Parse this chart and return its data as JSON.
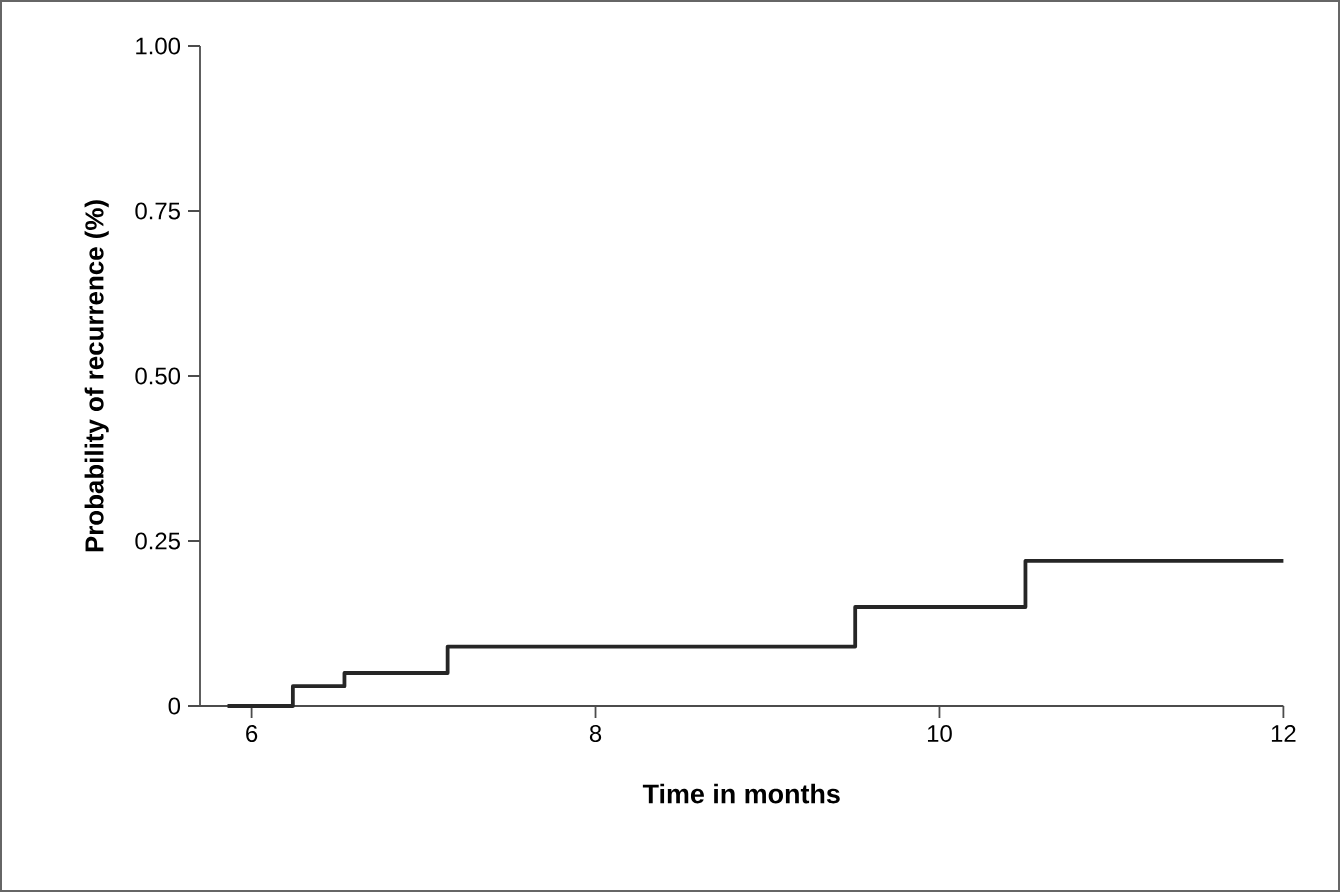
{
  "chart_data": {
    "type": "step",
    "xlabel": "Time in months",
    "ylabel": "Probability of recurrence (%)",
    "xlim": [
      5.7,
      12
    ],
    "xticks": [
      6,
      8,
      10,
      12
    ],
    "ylim": [
      0,
      1
    ],
    "yticks": [
      0,
      0.25,
      {
        "value": 0.5,
        "label": "0.50"
      },
      0.75,
      {
        "value": 1,
        "label": "1.00"
      }
    ],
    "x": [
      5.86,
      6.24,
      6.54,
      7.14,
      9.51,
      10.5,
      12
    ],
    "series": [
      {
        "color": "#262626",
        "values": [
          0,
          0.03,
          0.05,
          0.09,
          0.15,
          0.22,
          0.22
        ]
      }
    ]
  }
}
